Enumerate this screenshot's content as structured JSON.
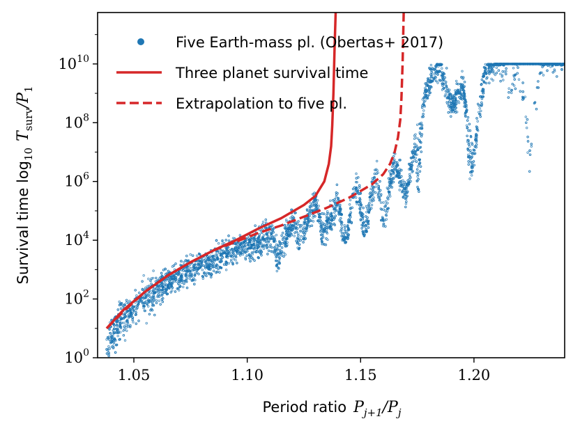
{
  "chart_data": {
    "type": "scatter",
    "x_axis": {
      "label_text": "Period ratio",
      "label_math": "P",
      "label_sub1": "j+1",
      "label_slash": "/P",
      "label_sub2": "j",
      "range": [
        1.034,
        1.24
      ],
      "ticks": [
        1.05,
        1.1,
        1.15,
        1.2
      ],
      "tick_labels": [
        "1.05",
        "1.10",
        "1.15",
        "1.20"
      ]
    },
    "y_axis": {
      "label_text": "Survival time log",
      "label_sub1": "10",
      "label_math": "T",
      "label_sub2": "surv",
      "label_slash": "/P",
      "label_sub3": "1",
      "scale": "log",
      "range_log10": [
        0,
        11.75
      ],
      "ticks_log10": [
        0,
        2,
        4,
        6,
        8,
        10
      ],
      "tick_base": "10",
      "tick_exponents": [
        "0",
        "2",
        "4",
        "6",
        "8",
        "10"
      ]
    },
    "legend": {
      "placement": "top-left",
      "entries": [
        "Five Earth-mass pl. (Obertas+ 2017)",
        "Three planet survival time",
        "Extrapolation to five pl."
      ]
    },
    "grid": false,
    "colors": {
      "scatter": "#1f77b4",
      "curve": "#d62728"
    },
    "series": [
      {
        "name": "Five Earth-mass pl. (Obertas+ 2017)",
        "kind": "scatter",
        "trend_x_log10": [
          [
            1.038,
            0.45
          ],
          [
            1.045,
            1.3
          ],
          [
            1.055,
            2.05
          ],
          [
            1.065,
            2.55
          ],
          [
            1.075,
            3.0
          ],
          [
            1.085,
            3.35
          ],
          [
            1.095,
            3.7
          ],
          [
            1.105,
            3.9
          ],
          [
            1.11,
            4.2
          ],
          [
            1.115,
            3.9
          ],
          [
            1.12,
            4.6
          ],
          [
            1.125,
            4.3
          ],
          [
            1.13,
            5.3
          ],
          [
            1.135,
            4.5
          ],
          [
            1.14,
            5.3
          ],
          [
            1.143,
            4.1
          ],
          [
            1.148,
            5.8
          ],
          [
            1.152,
            4.6
          ],
          [
            1.157,
            6.2
          ],
          [
            1.16,
            5.0
          ],
          [
            1.165,
            6.6
          ],
          [
            1.17,
            5.5
          ],
          [
            1.175,
            7.8
          ],
          [
            1.18,
            9.3
          ],
          [
            1.185,
            10.0
          ],
          [
            1.19,
            8.5
          ],
          [
            1.195,
            9.3
          ],
          [
            1.2,
            7.0
          ],
          [
            1.205,
            9.8
          ],
          [
            1.21,
            10.0
          ],
          [
            1.22,
            9.5
          ],
          [
            1.225,
            8.0
          ],
          [
            1.23,
            10.0
          ],
          [
            1.24,
            10.0
          ]
        ],
        "dips_x_log10": [
          [
            1.1135,
            2.8
          ],
          [
            1.123,
            3.6
          ],
          [
            1.1335,
            3.8
          ],
          [
            1.143,
            3.9
          ],
          [
            1.152,
            4.1
          ],
          [
            1.1605,
            4.4
          ],
          [
            1.1755,
            5.6
          ],
          [
            1.1985,
            6.0
          ],
          [
            1.2155,
            8.5
          ],
          [
            1.2245,
            6.0
          ]
        ]
      },
      {
        "name": "Three planet survival time",
        "kind": "line",
        "style": "solid",
        "x": [
          1.038,
          1.045,
          1.055,
          1.065,
          1.075,
          1.085,
          1.095,
          1.105,
          1.115,
          1.125,
          1.13,
          1.134,
          1.136,
          1.137,
          1.1375,
          1.138,
          1.1385,
          1.139
        ],
        "y_log10": [
          1.0,
          1.6,
          2.25,
          2.8,
          3.25,
          3.65,
          4.0,
          4.4,
          4.75,
          5.2,
          5.5,
          6.0,
          6.6,
          7.2,
          7.9,
          9.0,
          10.5,
          11.75
        ]
      },
      {
        "name": "Extrapolation to five pl.",
        "kind": "line",
        "style": "dashed",
        "x": [
          1.038,
          1.045,
          1.055,
          1.065,
          1.075,
          1.085,
          1.095,
          1.105,
          1.115,
          1.125,
          1.135,
          1.145,
          1.155,
          1.16,
          1.163,
          1.165,
          1.1665,
          1.1675,
          1.168,
          1.1685,
          1.169
        ],
        "y_log10": [
          1.0,
          1.55,
          2.25,
          2.8,
          3.25,
          3.65,
          3.95,
          4.25,
          4.5,
          4.8,
          5.1,
          5.45,
          5.9,
          6.25,
          6.6,
          7.0,
          7.5,
          8.1,
          8.8,
          10.0,
          11.75
        ]
      }
    ]
  }
}
